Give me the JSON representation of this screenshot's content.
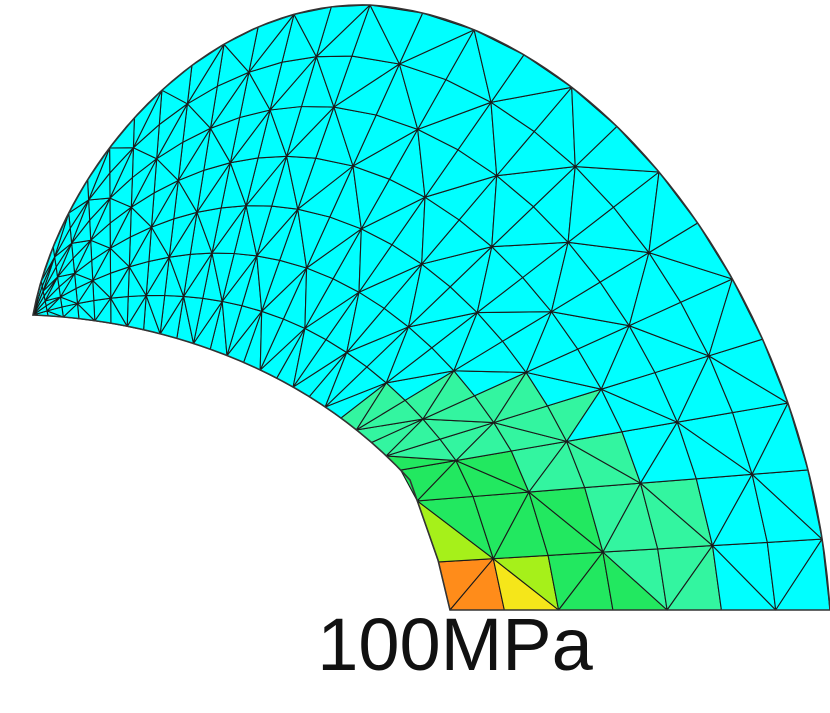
{
  "label": "100MPa"
}
